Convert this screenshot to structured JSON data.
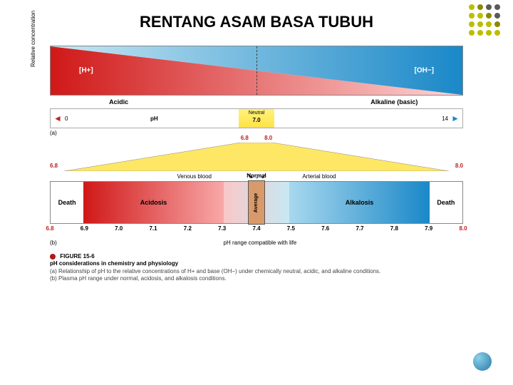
{
  "title": "RENTANG ASAM BASA TUBUH",
  "dots": {
    "colors": [
      "#bdbd00",
      "#8a8a00",
      "#5a5a5a"
    ],
    "grid": [
      [
        0,
        1,
        2,
        2
      ],
      [
        0,
        0,
        1,
        2
      ],
      [
        0,
        0,
        0,
        1
      ],
      [
        0,
        0,
        0,
        0
      ]
    ]
  },
  "panel_a": {
    "ylabel": "Relative concentration",
    "left_label": "[H+]",
    "right_label": "[OH−]",
    "left_color_start": "#d01818",
    "left_color_end": "#ffd6d6",
    "right_color_start": "#c8e8f4",
    "right_color_end": "#1a88c8",
    "states": {
      "acidic": "Acidic",
      "neutral": "Neutral",
      "alkaline": "Alkaline (basic)"
    },
    "scale": {
      "left": "0",
      "mid": "7.0",
      "right": "14",
      "label": "pH"
    },
    "section": "(a)"
  },
  "expand": {
    "left_val": "6.8",
    "right_val": "8.0",
    "range_left": "6.8",
    "range_right": "8.0",
    "fill": "#ffe766"
  },
  "blood": {
    "venous": "Venous blood",
    "arterial": "Arterial blood"
  },
  "panel_b": {
    "segments": [
      {
        "label": "Death",
        "width": 8,
        "bg": "#ffffff",
        "color": "#000"
      },
      {
        "label": "Acidosis",
        "width": 34,
        "bg": "linear-gradient(to right,#d01818,#f8a8a8)",
        "color": "#000"
      },
      {
        "label": "",
        "width": 16,
        "bg": "linear-gradient(to right,#f8c8c8,#c8e8f4)",
        "color": "#000"
      },
      {
        "label": "Alkalosis",
        "width": 34,
        "bg": "linear-gradient(to right,#a8d8ee,#1a88c8)",
        "color": "#000"
      },
      {
        "label": "Death",
        "width": 8,
        "bg": "#ffffff",
        "color": "#000"
      }
    ],
    "normal": "Normal",
    "average": "Average",
    "ticks": [
      "6.8",
      "6.9",
      "7.0",
      "7.1",
      "7.2",
      "7.3",
      "7.4",
      "7.5",
      "7.6",
      "7.7",
      "7.8",
      "7.9",
      "8.0"
    ],
    "tick_color_ends": "#c02020",
    "caption": "pH range compatible with life",
    "section": "(b)"
  },
  "figure_caption": {
    "num": "FIGURE 15-6",
    "title": "pH considerations in chemistry and physiology",
    "line_a": "(a) Relationship of pH to the relative concentrations of H+ and base (OH−) under chemically neutral, acidic, and alkaline conditions.",
    "line_b": "(b) Plasma pH range under normal, acidosis, and alkalosis conditions."
  }
}
